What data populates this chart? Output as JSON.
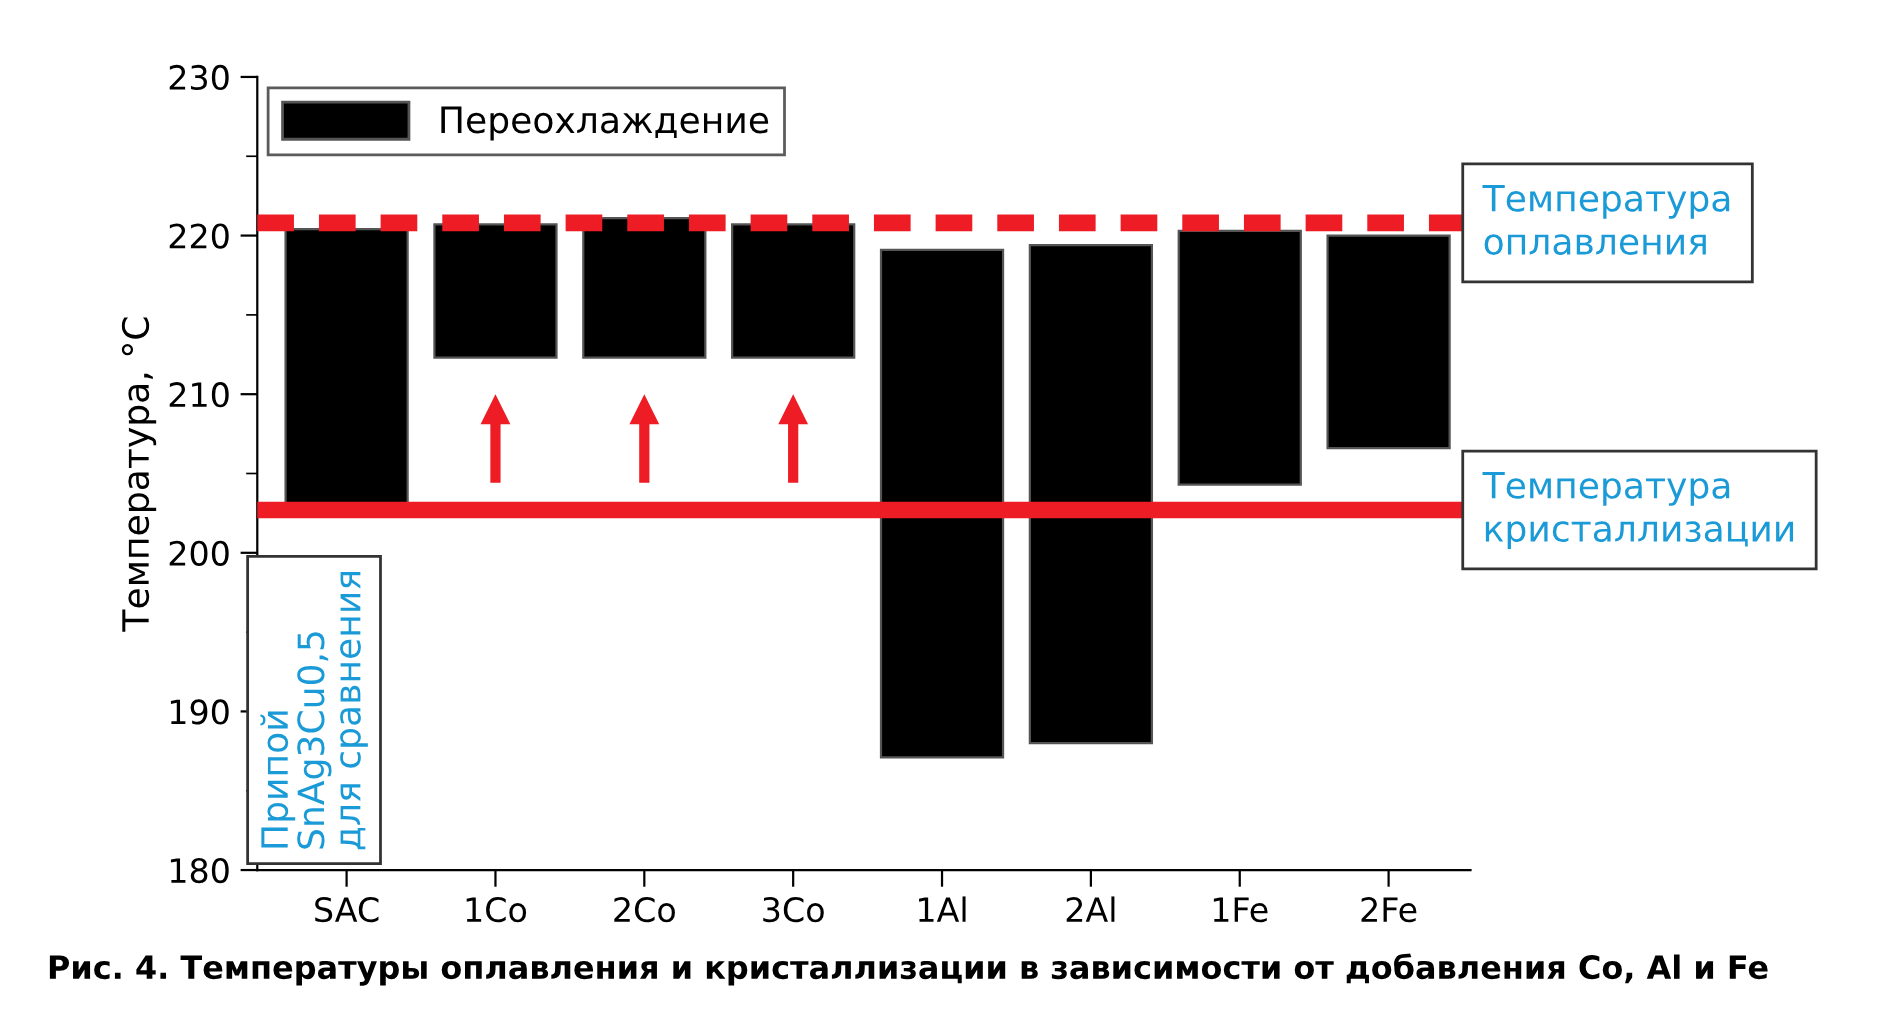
{
  "chart_data": {
    "type": "bar",
    "ylabel": "Температура, °С",
    "categories": [
      "SAC",
      "1Co",
      "2Co",
      "3Co",
      "1Al",
      "2Al",
      "1Fe",
      "2Fe"
    ],
    "series": [
      {
        "name": "Переохлаждение",
        "color": "#000000",
        "values": [
          17.4,
          8.4,
          8.8,
          8.4,
          32.0,
          31.4,
          16.0,
          13.4
        ],
        "base": [
          203.0,
          212.3,
          212.3,
          212.3,
          187.1,
          188.0,
          204.3,
          206.6
        ]
      }
    ],
    "ylim": [
      180,
      230
    ],
    "yticks": [
      180,
      190,
      200,
      210,
      220,
      230
    ],
    "ref_lines": [
      {
        "axis": "y",
        "value": 220.8,
        "label": "Температура\nоплавления",
        "color": "#ee1c25",
        "line_style": "dashed"
      },
      {
        "axis": "y",
        "value": 202.7,
        "label": "Температура\nкристаллизации",
        "color": "#ee1c25",
        "line_style": "solid"
      }
    ],
    "annotations": [
      "Припой\nSnAg3Cu0,5\nдля сравнения",
      "Рис. 4. Температуры оплавления и кристаллизации в зависимости от добавления Co, Al и Fe"
    ],
    "legend": "top left",
    "grid": false
  }
}
